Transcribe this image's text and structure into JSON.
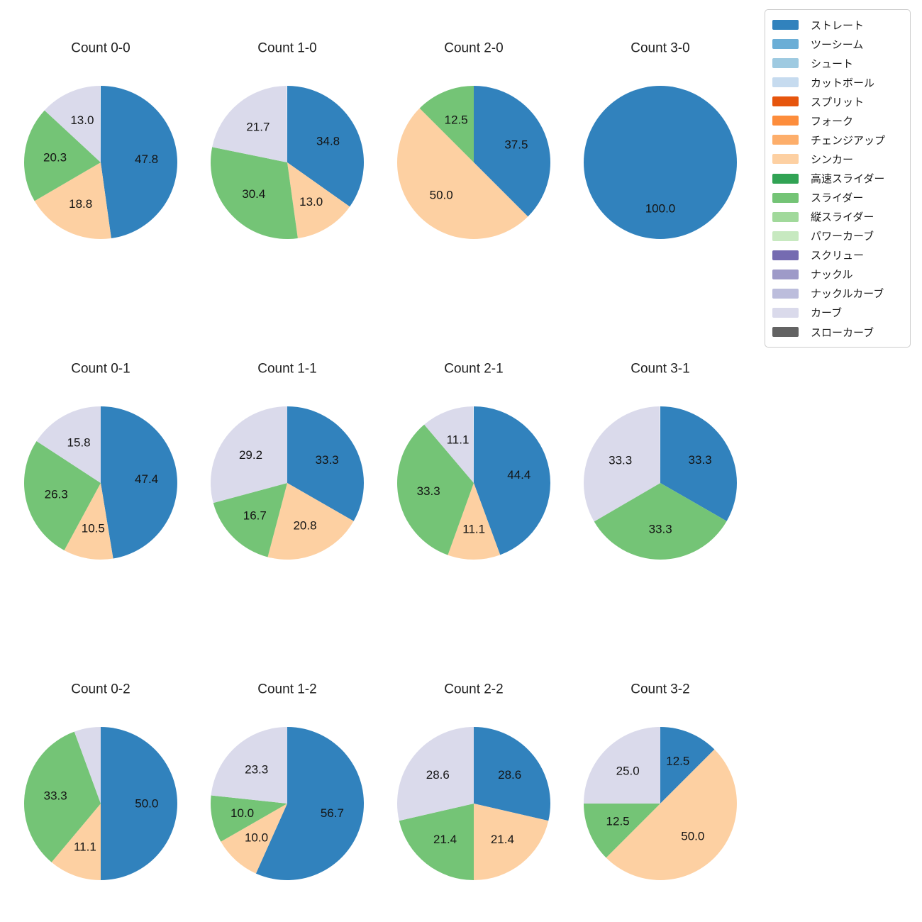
{
  "figure": {
    "background": "#ffffff",
    "text_color": "#1f1f1f"
  },
  "legend": {
    "items": [
      {
        "label": "ストレート",
        "color": "#3182bd"
      },
      {
        "label": "ツーシーム",
        "color": "#6baed6"
      },
      {
        "label": "シュート",
        "color": "#9ecae1"
      },
      {
        "label": "カットボール",
        "color": "#c6dbef"
      },
      {
        "label": "スプリット",
        "color": "#e6550d"
      },
      {
        "label": "フォーク",
        "color": "#fd8d3c"
      },
      {
        "label": "チェンジアップ",
        "color": "#fdae6b"
      },
      {
        "label": "シンカー",
        "color": "#fdd0a2"
      },
      {
        "label": "高速スライダー",
        "color": "#31a354"
      },
      {
        "label": "スライダー",
        "color": "#74c476"
      },
      {
        "label": "縦スライダー",
        "color": "#a1d99b"
      },
      {
        "label": "パワーカーブ",
        "color": "#c7e9c0"
      },
      {
        "label": "スクリュー",
        "color": "#756bb1"
      },
      {
        "label": "ナックル",
        "color": "#9e9ac8"
      },
      {
        "label": "ナックルカーブ",
        "color": "#bcbddc"
      },
      {
        "label": "カーブ",
        "color": "#dadaeb"
      },
      {
        "label": "スローカーブ",
        "color": "#636363"
      }
    ]
  },
  "chart_data": {
    "type": "pie",
    "grid": {
      "rows": 3,
      "cols": 4
    },
    "start_angle": 90,
    "direction": "clockwise",
    "pct_label_distance": 0.6,
    "legend_position": "upper right",
    "pies": [
      {
        "title": "Count 0-0",
        "slices": [
          {
            "label": "ストレート",
            "value": 47.8,
            "pct_label": "47.8"
          },
          {
            "label": "シンカー",
            "value": 18.8,
            "pct_label": "18.8"
          },
          {
            "label": "スライダー",
            "value": 20.3,
            "pct_label": "20.3"
          },
          {
            "label": "カーブ",
            "value": 13.0,
            "pct_label": "13.0"
          }
        ]
      },
      {
        "title": "Count 1-0",
        "slices": [
          {
            "label": "ストレート",
            "value": 34.8,
            "pct_label": "34.8"
          },
          {
            "label": "シンカー",
            "value": 13.0,
            "pct_label": "13.0"
          },
          {
            "label": "スライダー",
            "value": 30.4,
            "pct_label": "30.4"
          },
          {
            "label": "カーブ",
            "value": 21.7,
            "pct_label": "21.7"
          }
        ]
      },
      {
        "title": "Count 2-0",
        "slices": [
          {
            "label": "ストレート",
            "value": 37.5,
            "pct_label": "37.5"
          },
          {
            "label": "シンカー",
            "value": 50.0,
            "pct_label": "50.0"
          },
          {
            "label": "スライダー",
            "value": 12.5,
            "pct_label": "12.5"
          }
        ]
      },
      {
        "title": "Count 3-0",
        "slices": [
          {
            "label": "ストレート",
            "value": 100.0,
            "pct_label": "100.0"
          }
        ]
      },
      {
        "title": "Count 0-1",
        "slices": [
          {
            "label": "ストレート",
            "value": 47.4,
            "pct_label": "47.4"
          },
          {
            "label": "シンカー",
            "value": 10.5,
            "pct_label": "10.5"
          },
          {
            "label": "スライダー",
            "value": 26.3,
            "pct_label": "26.3"
          },
          {
            "label": "カーブ",
            "value": 15.8,
            "pct_label": "15.8"
          }
        ]
      },
      {
        "title": "Count 1-1",
        "slices": [
          {
            "label": "ストレート",
            "value": 33.3,
            "pct_label": "33.3"
          },
          {
            "label": "シンカー",
            "value": 20.8,
            "pct_label": "20.8"
          },
          {
            "label": "スライダー",
            "value": 16.7,
            "pct_label": "16.7"
          },
          {
            "label": "カーブ",
            "value": 29.2,
            "pct_label": "29.2"
          }
        ]
      },
      {
        "title": "Count 2-1",
        "slices": [
          {
            "label": "ストレート",
            "value": 44.4,
            "pct_label": "44.4"
          },
          {
            "label": "シンカー",
            "value": 11.1,
            "pct_label": "11.1"
          },
          {
            "label": "スライダー",
            "value": 33.3,
            "pct_label": "33.3"
          },
          {
            "label": "カーブ",
            "value": 11.1,
            "pct_label": "11.1"
          }
        ]
      },
      {
        "title": "Count 3-1",
        "slices": [
          {
            "label": "ストレート",
            "value": 33.3,
            "pct_label": "33.3"
          },
          {
            "label": "スライダー",
            "value": 33.3,
            "pct_label": "33.3"
          },
          {
            "label": "カーブ",
            "value": 33.3,
            "pct_label": "33.3"
          }
        ]
      },
      {
        "title": "Count 0-2",
        "slices": [
          {
            "label": "ストレート",
            "value": 50.0,
            "pct_label": "50.0"
          },
          {
            "label": "シンカー",
            "value": 11.1,
            "pct_label": "11.1"
          },
          {
            "label": "スライダー",
            "value": 33.3,
            "pct_label": "33.3"
          },
          {
            "label": "カーブ",
            "value": 5.6,
            "pct_label": ""
          }
        ]
      },
      {
        "title": "Count 1-2",
        "slices": [
          {
            "label": "ストレート",
            "value": 56.7,
            "pct_label": "56.7"
          },
          {
            "label": "シンカー",
            "value": 10.0,
            "pct_label": "10.0"
          },
          {
            "label": "スライダー",
            "value": 10.0,
            "pct_label": "10.0"
          },
          {
            "label": "カーブ",
            "value": 23.3,
            "pct_label": "23.3"
          }
        ]
      },
      {
        "title": "Count 2-2",
        "slices": [
          {
            "label": "ストレート",
            "value": 28.6,
            "pct_label": "28.6"
          },
          {
            "label": "シンカー",
            "value": 21.4,
            "pct_label": "21.4"
          },
          {
            "label": "スライダー",
            "value": 21.4,
            "pct_label": "21.4"
          },
          {
            "label": "カーブ",
            "value": 28.6,
            "pct_label": "28.6"
          }
        ]
      },
      {
        "title": "Count 3-2",
        "slices": [
          {
            "label": "ストレート",
            "value": 12.5,
            "pct_label": "12.5"
          },
          {
            "label": "シンカー",
            "value": 50.0,
            "pct_label": "50.0"
          },
          {
            "label": "スライダー",
            "value": 12.5,
            "pct_label": "12.5"
          },
          {
            "label": "カーブ",
            "value": 25.0,
            "pct_label": "25.0"
          }
        ]
      }
    ]
  }
}
